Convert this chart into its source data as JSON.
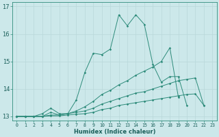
{
  "xlabel": "Humidex (Indice chaleur)",
  "xlim": [
    -0.5,
    23.5
  ],
  "ylim": [
    12.85,
    17.15
  ],
  "yticks": [
    13,
    14,
    15,
    16,
    17
  ],
  "xticks": [
    0,
    1,
    2,
    3,
    4,
    5,
    6,
    7,
    8,
    9,
    10,
    11,
    12,
    13,
    14,
    15,
    16,
    17,
    18,
    19,
    20,
    21,
    22,
    23
  ],
  "bg_color": "#cce8ea",
  "line_color": "#2d8b7a",
  "grid_color": "#b8d8da",
  "lines": [
    {
      "x": [
        0,
        1,
        2,
        3,
        4,
        5,
        6,
        7,
        8,
        9,
        10,
        11,
        12,
        13,
        14,
        15,
        16,
        17,
        18,
        19,
        20,
        21,
        22
      ],
      "y": [
        13.0,
        13.0,
        13.0,
        13.1,
        13.3,
        13.1,
        13.1,
        13.6,
        14.6,
        15.3,
        15.25,
        15.45,
        16.7,
        16.3,
        16.7,
        16.35,
        14.9,
        14.25,
        14.45,
        14.45,
        13.4,
        null,
        null
      ]
    },
    {
      "x": [
        0,
        1,
        2,
        3,
        4,
        5,
        6,
        7,
        8,
        9,
        10,
        11,
        12,
        13,
        14,
        15,
        16,
        17,
        18,
        19
      ],
      "y": [
        13.0,
        13.0,
        13.0,
        13.0,
        13.15,
        13.05,
        13.1,
        13.2,
        13.35,
        13.55,
        13.8,
        13.95,
        14.15,
        14.3,
        14.5,
        14.65,
        14.8,
        15.0,
        15.5,
        13.7
      ]
    },
    {
      "x": [
        0,
        1,
        2,
        3,
        4,
        5,
        6,
        7,
        8,
        9,
        10,
        11,
        12,
        13,
        14,
        15,
        16,
        17,
        18,
        19,
        20,
        21,
        22
      ],
      "y": [
        13.0,
        13.0,
        13.0,
        13.0,
        13.05,
        13.05,
        13.1,
        13.15,
        13.2,
        13.3,
        13.45,
        13.55,
        13.65,
        13.75,
        13.85,
        13.9,
        14.0,
        14.1,
        14.2,
        14.3,
        14.35,
        14.4,
        13.4
      ]
    },
    {
      "x": [
        0,
        1,
        2,
        3,
        4,
        5,
        6,
        7,
        8,
        9,
        10,
        11,
        12,
        13,
        14,
        15,
        16,
        17,
        18,
        19,
        20,
        21,
        22
      ],
      "y": [
        13.0,
        13.0,
        13.0,
        13.0,
        13.02,
        13.02,
        13.05,
        13.08,
        13.1,
        13.15,
        13.25,
        13.3,
        13.4,
        13.45,
        13.5,
        13.55,
        13.6,
        13.65,
        13.7,
        13.75,
        13.8,
        13.82,
        13.4
      ]
    }
  ]
}
